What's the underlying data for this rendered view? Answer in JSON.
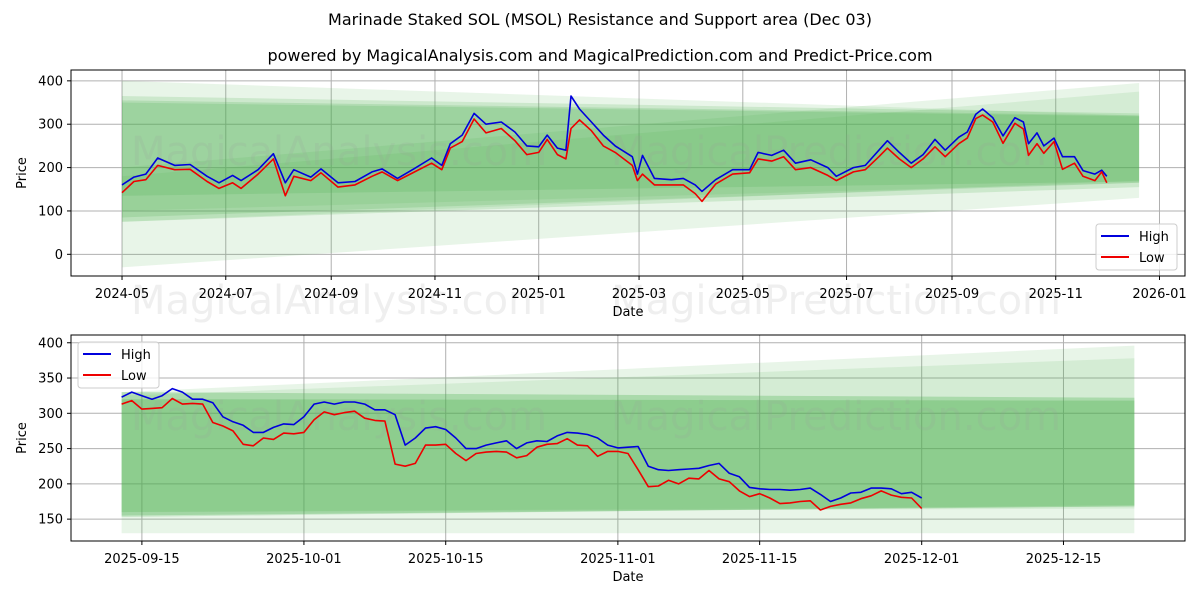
{
  "title": "Marinade Staked SOL (MSOL) Resistance and Support area (Dec 03)",
  "subtitle": "powered by MagicalAnalysis.com and MagicalPrediction.com and Predict-Price.com",
  "watermarks": [
    "MagicalAnalysis.com",
    "MagicalPrediction.com"
  ],
  "colors": {
    "high": "#0000dd",
    "low": "#ee0000",
    "band": "#4caf50"
  },
  "chart_data": [
    {
      "type": "line",
      "xlabel": "Date",
      "ylabel": "Price",
      "xlim": [
        "2024-04-01",
        "2026-01-16"
      ],
      "ylim": [
        -50,
        425
      ],
      "yticks": [
        0,
        100,
        200,
        300,
        400
      ],
      "xticks": [
        "2024-05-01",
        "2024-07-01",
        "2024-09-01",
        "2024-11-01",
        "2025-01-01",
        "2025-03-01",
        "2025-05-01",
        "2025-07-01",
        "2025-09-01",
        "2025-11-01",
        "2026-01-01"
      ],
      "xtick_labels": [
        "2024-05",
        "2024-07",
        "2024-09",
        "2024-11",
        "2025-01",
        "2025-03",
        "2025-05",
        "2025-07",
        "2025-09",
        "2025-11",
        "2026-01"
      ],
      "grid": true,
      "legend": {
        "position": "lower-right",
        "entries": [
          "High",
          "Low"
        ]
      },
      "bands": [
        {
          "start": "2024-05-01",
          "end": "2025-12-20",
          "start_range": [
            -30,
            400
          ],
          "end_range": [
            130,
            320
          ],
          "opacity": 0.13
        },
        {
          "start": "2024-05-01",
          "end": "2025-12-20",
          "start_range": [
            75,
            365
          ],
          "end_range": [
            155,
            325
          ],
          "opacity": 0.18
        },
        {
          "start": "2024-05-01",
          "end": "2025-12-20",
          "start_range": [
            85,
            355
          ],
          "end_range": [
            165,
            320
          ],
          "opacity": 0.2
        },
        {
          "start": "2024-05-01",
          "end": "2025-12-20",
          "start_range": [
            135,
            350
          ],
          "end_range": [
            168,
            318
          ],
          "opacity": 0.2
        },
        {
          "start": "2024-05-01",
          "end": "2025-12-20",
          "start_range": [
            75,
            200
          ],
          "end_range": [
            170,
            395
          ],
          "opacity": 0.13
        },
        {
          "start": "2024-05-01",
          "end": "2025-12-20",
          "start_range": [
            100,
            180
          ],
          "end_range": [
            165,
            375
          ],
          "opacity": 0.13
        }
      ],
      "dates": [
        "2024-05-01",
        "2024-05-08",
        "2024-05-15",
        "2024-05-22",
        "2024-06-01",
        "2024-06-10",
        "2024-06-20",
        "2024-06-27",
        "2024-07-05",
        "2024-07-10",
        "2024-07-20",
        "2024-07-29",
        "2024-08-05",
        "2024-08-10",
        "2024-08-20",
        "2024-08-26",
        "2024-09-05",
        "2024-09-15",
        "2024-09-25",
        "2024-10-01",
        "2024-10-10",
        "2024-10-20",
        "2024-10-30",
        "2024-11-05",
        "2024-11-10",
        "2024-11-17",
        "2024-11-24",
        "2024-12-01",
        "2024-12-10",
        "2024-12-18",
        "2024-12-25",
        "2025-01-01",
        "2025-01-06",
        "2025-01-12",
        "2025-01-17",
        "2025-01-20",
        "2025-01-25",
        "2025-02-01",
        "2025-02-08",
        "2025-02-15",
        "2025-02-25",
        "2025-02-28",
        "2025-03-03",
        "2025-03-10",
        "2025-03-20",
        "2025-03-27",
        "2025-04-03",
        "2025-04-07",
        "2025-04-15",
        "2025-04-25",
        "2025-05-05",
        "2025-05-10",
        "2025-05-18",
        "2025-05-25",
        "2025-06-01",
        "2025-06-10",
        "2025-06-20",
        "2025-06-25",
        "2025-07-05",
        "2025-07-12",
        "2025-07-20",
        "2025-07-25",
        "2025-08-01",
        "2025-08-08",
        "2025-08-15",
        "2025-08-22",
        "2025-08-28",
        "2025-09-05",
        "2025-09-10",
        "2025-09-15",
        "2025-09-19",
        "2025-09-25",
        "2025-10-01",
        "2025-10-08",
        "2025-10-13",
        "2025-10-16",
        "2025-10-21",
        "2025-10-25",
        "2025-10-31",
        "2025-11-05",
        "2025-11-12",
        "2025-11-17",
        "2025-11-24",
        "2025-11-28",
        "2025-12-01"
      ],
      "series": [
        {
          "name": "High",
          "values": [
            160,
            178,
            185,
            222,
            205,
            207,
            180,
            165,
            182,
            170,
            195,
            232,
            165,
            195,
            178,
            197,
            165,
            168,
            190,
            197,
            175,
            198,
            222,
            205,
            255,
            275,
            325,
            300,
            305,
            282,
            250,
            248,
            275,
            245,
            240,
            365,
            335,
            305,
            275,
            250,
            225,
            185,
            228,
            175,
            172,
            175,
            160,
            145,
            172,
            195,
            195,
            235,
            228,
            240,
            210,
            218,
            200,
            180,
            200,
            205,
            240,
            262,
            235,
            210,
            230,
            265,
            240,
            270,
            282,
            323,
            335,
            315,
            273,
            315,
            305,
            255,
            280,
            250,
            268,
            225,
            225,
            193,
            185,
            194,
            180
          ]
        },
        {
          "name": "Low",
          "values": [
            142,
            168,
            172,
            205,
            195,
            196,
            168,
            152,
            165,
            152,
            185,
            220,
            135,
            180,
            170,
            188,
            155,
            160,
            180,
            190,
            170,
            190,
            210,
            195,
            245,
            260,
            312,
            280,
            290,
            262,
            230,
            235,
            265,
            230,
            220,
            290,
            310,
            285,
            250,
            235,
            205,
            170,
            185,
            160,
            160,
            160,
            140,
            122,
            162,
            185,
            188,
            220,
            215,
            225,
            195,
            200,
            182,
            170,
            190,
            195,
            225,
            245,
            220,
            200,
            220,
            248,
            225,
            255,
            268,
            313,
            321,
            305,
            256,
            302,
            289,
            228,
            255,
            233,
            260,
            196,
            210,
            180,
            170,
            190,
            165
          ]
        }
      ]
    },
    {
      "type": "line",
      "xlabel": "Date",
      "ylabel": "Price",
      "xlim": [
        "2025-09-08",
        "2025-12-27"
      ],
      "ylim": [
        119,
        411
      ],
      "yticks": [
        150,
        200,
        250,
        300,
        350,
        400
      ],
      "xticks": [
        "2025-09-15",
        "2025-10-01",
        "2025-10-15",
        "2025-11-01",
        "2025-11-15",
        "2025-12-01",
        "2025-12-15"
      ],
      "xtick_labels": [
        "2025-09-15",
        "2025-10-01",
        "2025-10-15",
        "2025-11-01",
        "2025-11-15",
        "2025-12-01",
        "2025-12-15"
      ],
      "grid": true,
      "legend": {
        "position": "upper-left",
        "entries": [
          "High",
          "Low"
        ]
      },
      "bands": [
        {
          "start": "2025-09-13",
          "end": "2025-12-22",
          "start_range": [
            130,
            330
          ],
          "end_range": [
            130,
            322
          ],
          "opacity": 0.13
        },
        {
          "start": "2025-09-13",
          "end": "2025-12-22",
          "start_range": [
            153,
            330
          ],
          "end_range": [
            170,
            322
          ],
          "opacity": 0.2
        },
        {
          "start": "2025-09-13",
          "end": "2025-12-22",
          "start_range": [
            155,
            320
          ],
          "end_range": [
            168,
            318
          ],
          "opacity": 0.3
        },
        {
          "start": "2025-09-13",
          "end": "2025-12-22",
          "start_range": [
            160,
            330
          ],
          "end_range": [
            165,
            396
          ],
          "opacity": 0.13
        },
        {
          "start": "2025-09-13",
          "end": "2025-12-22",
          "start_range": [
            160,
            325
          ],
          "end_range": [
            168,
            378
          ],
          "opacity": 0.13
        }
      ],
      "start_date": "2025-09-13",
      "series": [
        {
          "name": "High",
          "values": [
            323,
            330,
            325,
            320,
            325,
            335,
            330,
            320,
            320,
            315,
            295,
            288,
            283,
            273,
            273,
            280,
            285,
            284,
            295,
            313,
            316,
            313,
            316,
            316,
            313,
            305,
            305,
            298,
            255,
            265,
            279,
            281,
            277,
            265,
            250,
            250,
            255,
            258,
            261,
            250,
            258,
            261,
            260,
            268,
            273,
            272,
            270,
            265,
            255,
            251,
            252,
            253,
            225,
            220,
            219,
            220,
            221,
            222,
            226,
            229,
            215,
            210,
            195,
            193,
            192,
            192,
            191,
            192,
            194,
            185,
            175,
            180,
            187,
            188,
            194,
            194,
            193,
            186,
            188,
            180
          ]
        },
        {
          "name": "Low",
          "values": [
            313,
            318,
            306,
            307,
            308,
            321,
            313,
            314,
            313,
            287,
            282,
            275,
            256,
            254,
            265,
            263,
            272,
            271,
            273,
            291,
            302,
            298,
            301,
            303,
            293,
            290,
            289,
            228,
            225,
            229,
            255,
            255,
            256,
            243,
            233,
            243,
            245,
            246,
            245,
            237,
            240,
            252,
            256,
            257,
            264,
            255,
            254,
            239,
            246,
            246,
            243,
            220,
            196,
            197,
            205,
            200,
            208,
            207,
            219,
            207,
            203,
            190,
            182,
            186,
            180,
            172,
            173,
            175,
            176,
            163,
            168,
            171,
            173,
            179,
            183,
            190,
            184,
            181,
            180,
            165
          ]
        }
      ]
    }
  ]
}
